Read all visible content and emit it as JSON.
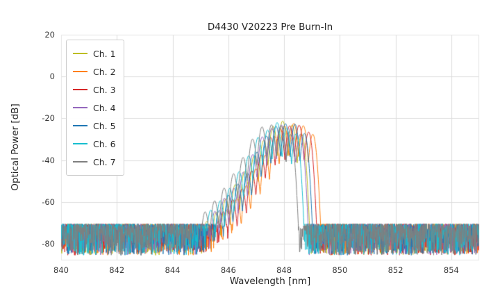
{
  "chart_data": {
    "type": "line",
    "title": "D4430 V20223 Pre Burn-In",
    "xlabel": "Wavelength [nm]",
    "ylabel": "Optical Power [dB]",
    "xlim": [
      840,
      855
    ],
    "ylim": [
      -88,
      20
    ],
    "xticks": [
      840,
      842,
      844,
      846,
      848,
      850,
      852,
      854
    ],
    "yticks": [
      20,
      0,
      -20,
      -40,
      -60,
      -80
    ],
    "grid": true,
    "grid_color": "#dcdcdc",
    "legend_position": "upper left",
    "series": [
      {
        "name": "Ch. 1",
        "color": "#bcbd22",
        "center_nm": 847.95,
        "peak_db": -22.5
      },
      {
        "name": "Ch. 2",
        "color": "#ff7f0e",
        "center_nm": 848.35,
        "peak_db": -22.0
      },
      {
        "name": "Ch. 3",
        "color": "#d62728",
        "center_nm": 848.2,
        "peak_db": -22.5
      },
      {
        "name": "Ch. 4",
        "color": "#9467bd",
        "center_nm": 847.9,
        "peak_db": -23.0
      },
      {
        "name": "Ch. 5",
        "color": "#1f77b4",
        "center_nm": 848.05,
        "peak_db": -22.0
      },
      {
        "name": "Ch. 6",
        "color": "#17becf",
        "center_nm": 847.75,
        "peak_db": -22.5
      },
      {
        "name": "Ch. 7",
        "color": "#7f7f7f",
        "center_nm": 847.55,
        "peak_db": -22.5
      }
    ],
    "spectrum_model": {
      "description": "Multi-lobe laser spectrum: ~0.34 nm mode spacing, peaks near -22 dB around 847-849 nm, sharp right cutoff ~849 nm, noise floor band -70 to -86 dB",
      "lobe_spacing_nm": 0.34,
      "lobe_heights_db": [
        -70,
        -64,
        -58,
        -52,
        -45,
        -37,
        -29,
        -24,
        -22,
        -23.5,
        -27
      ],
      "lobe_k_start": -8,
      "lobe_sharpness": 550,
      "noise_floor_top_db": -70.5,
      "noise_floor_depth_db": 15
    }
  }
}
